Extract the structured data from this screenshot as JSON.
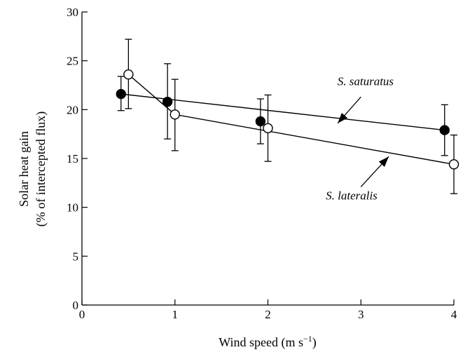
{
  "chart_data": {
    "type": "scatter",
    "xlabel": "Wind speed (m s",
    "xlabel_sup": "−1",
    "xlabel_close": ")",
    "ylabel_line1": "Solar heat gain",
    "ylabel_line2": "(% of intercepted flux)",
    "xlim": [
      0,
      4
    ],
    "ylim": [
      0,
      30
    ],
    "x_ticks": [
      0,
      1,
      2,
      3,
      4
    ],
    "y_ticks": [
      0,
      5,
      10,
      15,
      20,
      25,
      30
    ],
    "grid": false,
    "legend": "none",
    "series": [
      {
        "name": "S. saturatus",
        "marker": "filled-circle",
        "points": [
          {
            "x": 0.42,
            "y": 21.6,
            "err_lo": 19.9,
            "err_hi": 23.4
          },
          {
            "x": 0.92,
            "y": 20.8,
            "err_lo": 17.0,
            "err_hi": 24.7
          },
          {
            "x": 1.92,
            "y": 18.8,
            "err_lo": 16.5,
            "err_hi": 21.1
          },
          {
            "x": 3.9,
            "y": 17.9,
            "err_lo": 15.3,
            "err_hi": 20.5
          }
        ],
        "fit": [
          {
            "x": 0.42,
            "y": 21.6
          },
          {
            "x": 3.9,
            "y": 17.9
          }
        ]
      },
      {
        "name": "S. lateralis",
        "marker": "open-circle",
        "points": [
          {
            "x": 0.5,
            "y": 23.6,
            "err_lo": 20.1,
            "err_hi": 27.2
          },
          {
            "x": 1.0,
            "y": 19.5,
            "err_lo": 15.8,
            "err_hi": 23.1
          },
          {
            "x": 2.0,
            "y": 18.1,
            "err_lo": 14.7,
            "err_hi": 21.5
          },
          {
            "x": 4.0,
            "y": 14.4,
            "err_lo": 11.4,
            "err_hi": 17.4
          }
        ],
        "fit": [
          {
            "x": 0.5,
            "y": 23.6
          },
          {
            "x": 1.0,
            "y": 19.5
          },
          {
            "x": 4.0,
            "y": 14.4
          }
        ]
      }
    ],
    "annotations": [
      {
        "text": "S. saturatus",
        "arrow_from": {
          "x": 3.0,
          "y": 21.3
        },
        "arrow_to": {
          "x": 2.75,
          "y": 18.6
        }
      },
      {
        "text": "S. lateralis",
        "arrow_from": {
          "x": 3.0,
          "y": 12.1
        },
        "arrow_to": {
          "x": 3.3,
          "y": 15.2
        }
      }
    ]
  }
}
